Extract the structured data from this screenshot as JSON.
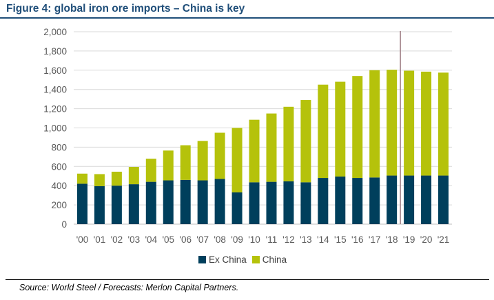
{
  "figure_title": "Figure 4: global iron ore imports – China is key",
  "source_note": "Source: World Steel / Forecasts: Merlon Capital Partners.",
  "colors": {
    "ex_china": "#003f5c",
    "china": "#b5c20b",
    "title": "#1f4e79",
    "gridline": "#d9d9d9",
    "forecast_line": "#a07f86"
  },
  "chart_data": {
    "type": "bar",
    "stacked": true,
    "title": "",
    "xlabel": "",
    "ylabel": "",
    "ylim": [
      0,
      2000
    ],
    "yticks": [
      0,
      200,
      400,
      600,
      800,
      1000,
      1200,
      1400,
      1600,
      1800,
      2000
    ],
    "ytick_labels": [
      "0",
      "200",
      "400",
      "600",
      "800",
      "1,000",
      "1,200",
      "1,400",
      "1,600",
      "1,800",
      "2,000"
    ],
    "categories": [
      "'00",
      "'01",
      "'02",
      "'03",
      "'04",
      "'05",
      "'06",
      "'07",
      "'08",
      "'09",
      "'10",
      "'11",
      "'12",
      "'13",
      "'14",
      "'15",
      "'16",
      "'17",
      "'18",
      "'19",
      "'20",
      "'21"
    ],
    "series": [
      {
        "name": "Ex China",
        "values": [
          420,
          395,
          400,
          415,
          440,
          455,
          460,
          455,
          470,
          330,
          435,
          440,
          445,
          435,
          480,
          495,
          480,
          485,
          505,
          505,
          505,
          505
        ]
      },
      {
        "name": "China",
        "values": [
          105,
          125,
          145,
          180,
          240,
          310,
          360,
          410,
          480,
          670,
          650,
          710,
          775,
          855,
          970,
          985,
          1060,
          1115,
          1100,
          1090,
          1080,
          1070
        ]
      }
    ],
    "forecast_divider_after": "'18",
    "grid": true,
    "legend_position": "bottom"
  }
}
